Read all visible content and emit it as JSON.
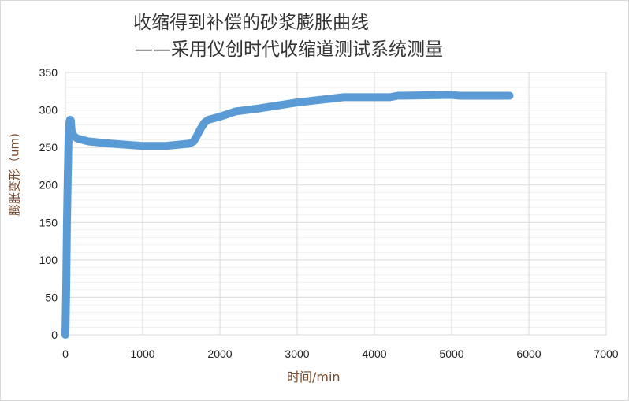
{
  "chart_data": {
    "type": "line",
    "title_line1": "收缩得到补偿的砂浆膨胀曲线",
    "title_line2": "——采用仪创时代收缩道测试系统测量",
    "xlabel": "时间/min",
    "ylabel": "膨胀变形（um)",
    "xlim": [
      0,
      7000
    ],
    "ylim": [
      0,
      350
    ],
    "xticks": [
      0,
      1000,
      2000,
      3000,
      4000,
      5000,
      6000,
      7000
    ],
    "yticks": [
      0,
      50,
      100,
      150,
      200,
      250,
      300,
      350
    ],
    "grid": true,
    "color": "#5b9bd5",
    "x": [
      0,
      10,
      20,
      30,
      40,
      50,
      60,
      70,
      80,
      100,
      150,
      300,
      600,
      1000,
      1300,
      1600,
      1660,
      1700,
      1750,
      1800,
      1850,
      2000,
      2200,
      2500,
      3000,
      3600,
      4000,
      4200,
      4300,
      5000,
      5100,
      5750
    ],
    "y": [
      0,
      60,
      150,
      210,
      260,
      282,
      287,
      286,
      272,
      266,
      262,
      258,
      255,
      252,
      252,
      255,
      258,
      265,
      275,
      283,
      287,
      291,
      298,
      302,
      310,
      317,
      317,
      317,
      319,
      320,
      319,
      319
    ]
  }
}
